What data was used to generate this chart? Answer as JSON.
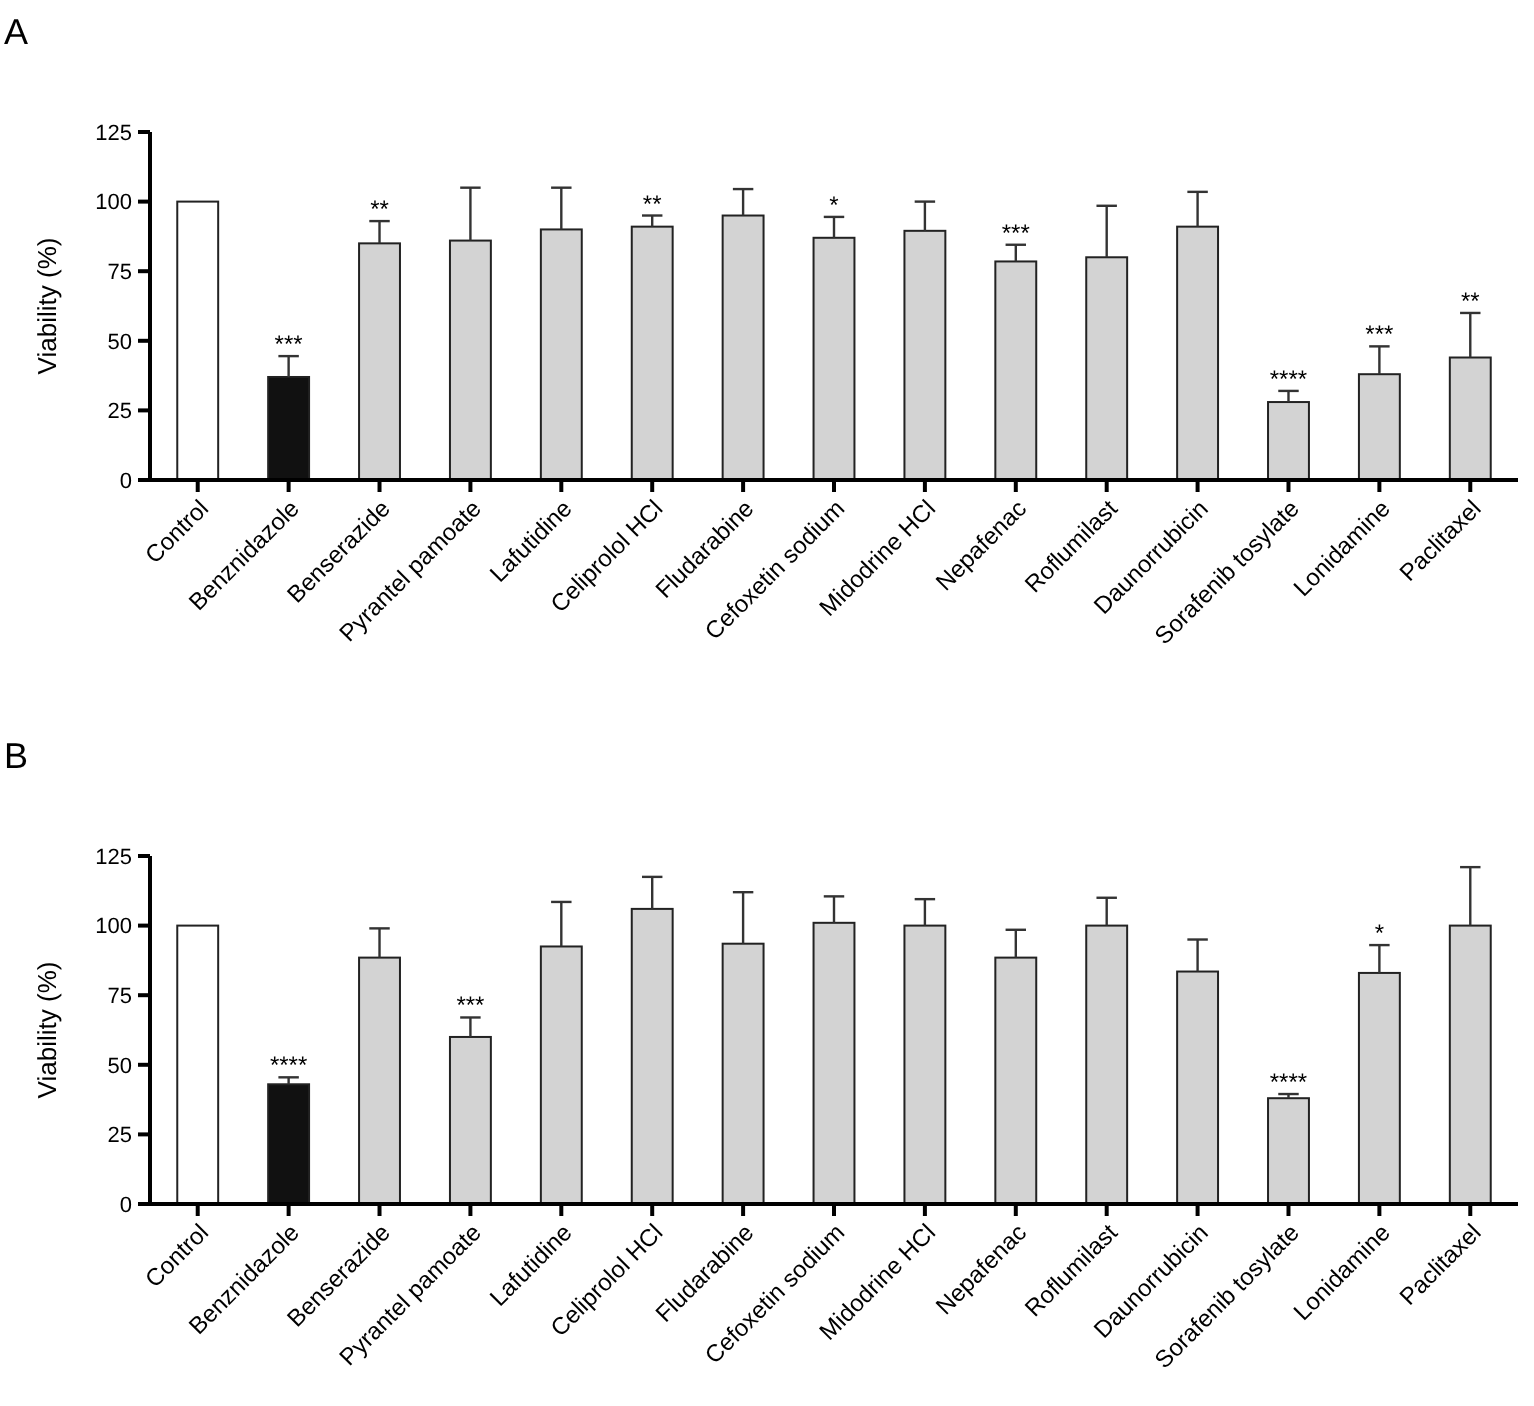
{
  "chart_data": [
    {
      "type": "bar",
      "title": "A",
      "ylabel": "Viability (%)",
      "categories": [
        "Control",
        "Benznidazole",
        "Benserazide",
        "Pyrantel pamoate",
        "Lafutidine",
        "Celiprolol HCl",
        "Fludarabine",
        "Cefoxetin sodium",
        "Midodrine HCl",
        "Nepafenac",
        "Roflumilast",
        "Daunorrubicin",
        "Sorafenib tosylate",
        "Lonidamine",
        "Paclitaxel"
      ],
      "values": [
        100,
        37,
        85,
        86,
        90,
        91,
        95,
        87,
        89.5,
        78.5,
        80,
        91,
        28,
        38,
        44
      ],
      "colors": [
        "#ffffff",
        "#111111",
        "#d3d3d3",
        "#d3d3d3",
        "#d3d3d3",
        "#d3d3d3",
        "#d3d3d3",
        "#d3d3d3",
        "#d3d3d3",
        "#d3d3d3",
        "#d3d3d3",
        "#d3d3d3",
        "#d3d3d3",
        "#d3d3d3",
        "#d3d3d3"
      ],
      "errors": [
        null,
        [
          37,
          44.5
        ],
        [
          85,
          93
        ],
        [
          86,
          105
        ],
        [
          90,
          105
        ],
        [
          91,
          95
        ],
        [
          95,
          104.5
        ],
        [
          87,
          94.5
        ],
        [
          89.5,
          100
        ],
        [
          78.5,
          84.5
        ],
        [
          80,
          98.5
        ],
        [
          91,
          103.5
        ],
        [
          28,
          32
        ],
        [
          38,
          48
        ],
        [
          44,
          60
        ]
      ],
      "ylim": [
        0,
        125
      ],
      "yticks": [
        0,
        25,
        50,
        75,
        100,
        125
      ],
      "annotations": [
        {
          "text": "***",
          "x": "Benznidazole",
          "y": 37
        },
        {
          "text": "**",
          "x": "Benserazide",
          "y": 85
        },
        {
          "text": "**",
          "x": "Celiprolol HCl",
          "y": 91
        },
        {
          "text": "*",
          "x": "Cefoxetin sodium",
          "y": 87
        },
        {
          "text": "***",
          "x": "Nepafenac",
          "y": 78.5
        },
        {
          "text": "****",
          "x": "Sorafenib tosylate",
          "y": 28
        },
        {
          "text": "***",
          "x": "Lonidamine",
          "y": 38
        },
        {
          "text": "**",
          "x": "Paclitaxel",
          "y": 44
        }
      ]
    },
    {
      "type": "bar",
      "title": "B",
      "ylabel": "Viability (%)",
      "categories": [
        "Control",
        "Benznidazole",
        "Benserazide",
        "Pyrantel pamoate",
        "Lafutidine",
        "Celiprolol HCl",
        "Fludarabine",
        "Cefoxetin sodium",
        "Midodrine HCl",
        "Nepafenac",
        "Roflumilast",
        "Daunorrubicin",
        "Sorafenib tosylate",
        "Lonidamine",
        "Paclitaxel"
      ],
      "values": [
        100,
        43,
        88.5,
        60,
        92.5,
        106,
        93.5,
        101,
        100,
        88.5,
        100,
        83.5,
        38,
        83,
        100
      ],
      "colors": [
        "#ffffff",
        "#111111",
        "#d3d3d3",
        "#d3d3d3",
        "#d3d3d3",
        "#d3d3d3",
        "#d3d3d3",
        "#d3d3d3",
        "#d3d3d3",
        "#d3d3d3",
        "#d3d3d3",
        "#d3d3d3",
        "#d3d3d3",
        "#d3d3d3",
        "#d3d3d3"
      ],
      "errors": [
        null,
        [
          43,
          45.5
        ],
        [
          88.5,
          99
        ],
        [
          60,
          67
        ],
        [
          92.5,
          108.5
        ],
        [
          106,
          117.5
        ],
        [
          93.5,
          112
        ],
        [
          101,
          110.5
        ],
        [
          100,
          109.5
        ],
        [
          88.5,
          98.5
        ],
        [
          100,
          110
        ],
        [
          83.5,
          95
        ],
        [
          38,
          39.5
        ],
        [
          83,
          93
        ],
        [
          100,
          121
        ]
      ],
      "ylim": [
        0,
        125
      ],
      "yticks": [
        0,
        25,
        50,
        75,
        100,
        125
      ],
      "annotations": [
        {
          "text": "****",
          "x": "Benznidazole",
          "y": 43
        },
        {
          "text": "***",
          "x": "Pyrantel pamoate",
          "y": 60
        },
        {
          "text": "****",
          "x": "Sorafenib tosylate",
          "y": 38
        },
        {
          "text": "*",
          "x": "Lonidamine",
          "y": 83
        }
      ]
    }
  ]
}
